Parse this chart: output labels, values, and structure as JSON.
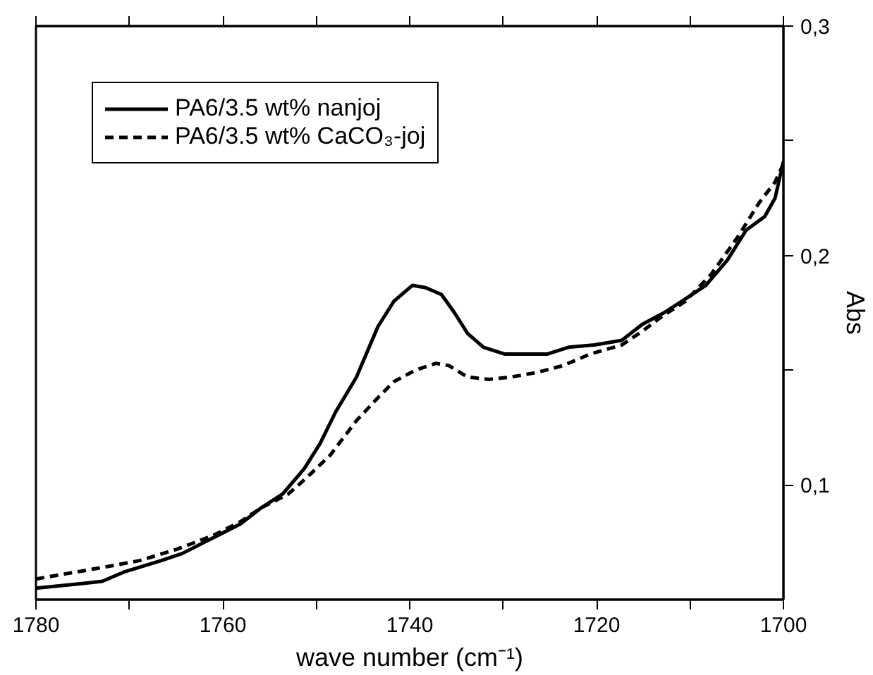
{
  "chart_data": {
    "type": "line",
    "xlabel": "wave number (cm⁻¹)",
    "ylabel": "Abs",
    "xlim": [
      1780,
      1700
    ],
    "ylim": [
      0.05,
      0.3
    ],
    "xticks": [
      1780,
      {
        "value": 1770,
        "label": null
      },
      1760,
      {
        "value": 1750,
        "label": null
      },
      1740,
      {
        "value": 1730,
        "label": null
      },
      1720,
      {
        "value": 1710,
        "label": null
      },
      1700
    ],
    "yticks": [
      {
        "value": 0.1,
        "label": "0,1"
      },
      {
        "value": 0.15,
        "label": null
      },
      {
        "value": 0.2,
        "label": "0,2"
      },
      {
        "value": 0.25,
        "label": null
      },
      {
        "value": 0.3,
        "label": "0,3"
      }
    ],
    "grid": false,
    "legend": "top left",
    "marker": "none",
    "series": [
      {
        "name": "PA6/3.5 wt% nanjoj",
        "color": "#000000",
        "line_style": "solid",
        "x": [
          1780,
          1775.1,
          1772.9,
          1770.6,
          1766.6,
          1764.4,
          1761,
          1758.1,
          1755.9,
          1753.6,
          1751.3,
          1749.6,
          1747.9,
          1745.7,
          1743.4,
          1741.7,
          1739.7,
          1738.3,
          1736.6,
          1735.2,
          1733.8,
          1732.1,
          1729.8,
          1727,
          1725.3,
          1723,
          1720.2,
          1717.3,
          1715.1,
          1712.8,
          1710.5,
          1708.3,
          1706,
          1704,
          1702,
          1700.9,
          1700
        ],
        "values": [
          0.055,
          0.057,
          0.058,
          0.062,
          0.067,
          0.07,
          0.077,
          0.083,
          0.09,
          0.096,
          0.107,
          0.118,
          0.132,
          0.147,
          0.169,
          0.18,
          0.187,
          0.186,
          0.183,
          0.175,
          0.166,
          0.16,
          0.157,
          0.157,
          0.157,
          0.16,
          0.161,
          0.163,
          0.17,
          0.175,
          0.181,
          0.187,
          0.198,
          0.211,
          0.217,
          0.225,
          0.241
        ]
      },
      {
        "name": "PA6/3.5 wt% CaCO₃-joj",
        "color": "#000000",
        "line_style": "dashed",
        "x": [
          1780,
          1772.9,
          1768.9,
          1764.9,
          1761,
          1758.1,
          1755.9,
          1753,
          1750.8,
          1748.5,
          1745.7,
          1743.4,
          1741.7,
          1739.4,
          1737.2,
          1735.8,
          1733.8,
          1731.5,
          1729.2,
          1726.4,
          1723.6,
          1720.7,
          1717.3,
          1715.1,
          1712.8,
          1710.5,
          1707.7,
          1704.9,
          1702.6,
          1700.9,
          1700
        ],
        "values": [
          0.059,
          0.064,
          0.067,
          0.072,
          0.078,
          0.084,
          0.09,
          0.096,
          0.104,
          0.113,
          0.128,
          0.138,
          0.145,
          0.15,
          0.153,
          0.152,
          0.147,
          0.146,
          0.147,
          0.149,
          0.152,
          0.157,
          0.161,
          0.167,
          0.174,
          0.18,
          0.192,
          0.208,
          0.223,
          0.232,
          0.24
        ]
      }
    ]
  }
}
